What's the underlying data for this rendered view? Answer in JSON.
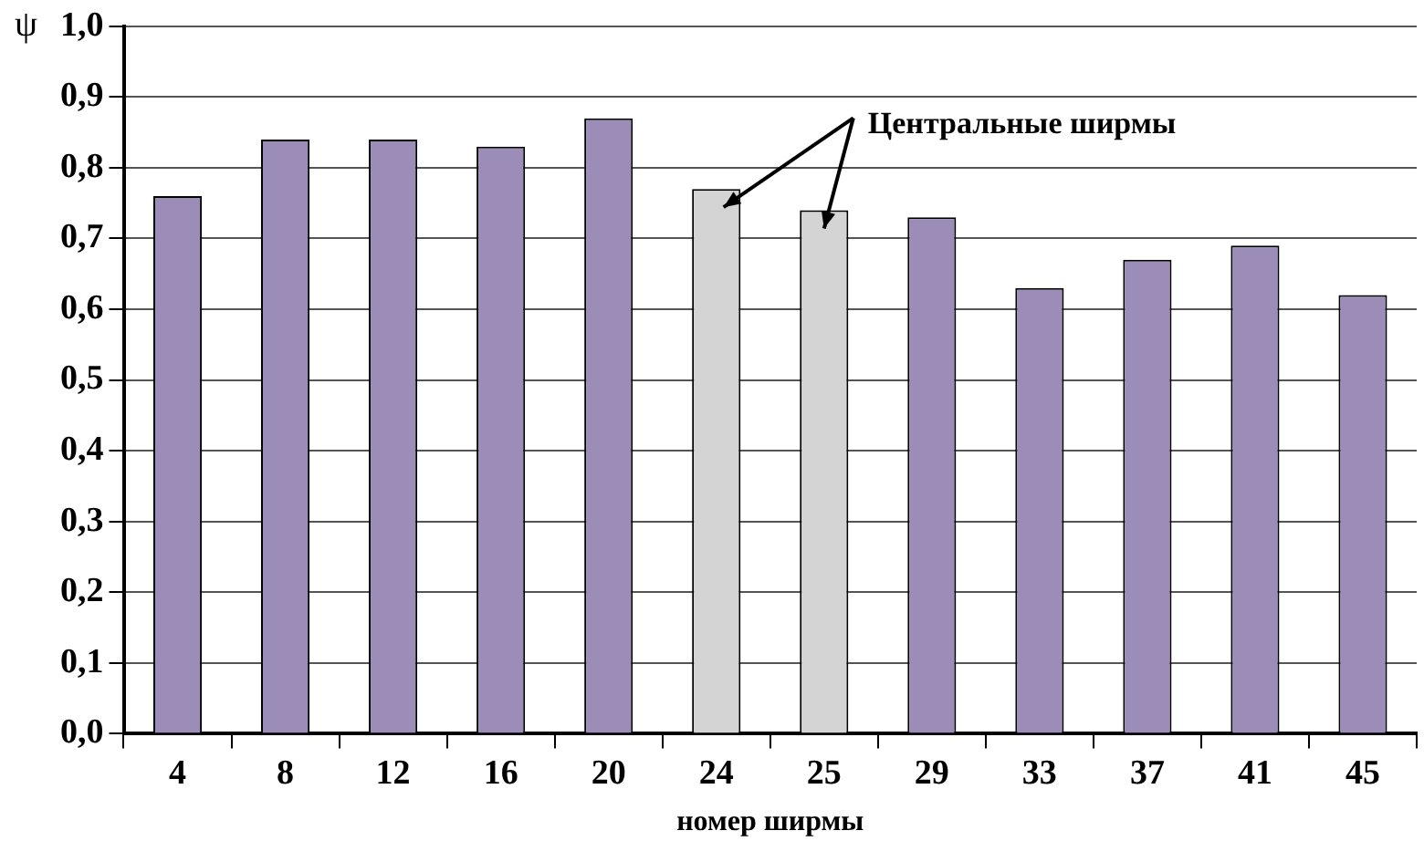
{
  "chart_data": {
    "type": "bar",
    "xlabel": "номер ширмы",
    "ylabel": "ψ",
    "categories": [
      "4",
      "8",
      "12",
      "16",
      "20",
      "24",
      "25",
      "29",
      "33",
      "37",
      "41",
      "45"
    ],
    "values": [
      0.76,
      0.84,
      0.84,
      0.83,
      0.87,
      0.77,
      0.74,
      0.73,
      0.63,
      0.67,
      0.69,
      0.62
    ],
    "colors": [
      "#9c8cb8",
      "#9c8cb8",
      "#9c8cb8",
      "#9c8cb8",
      "#9c8cb8",
      "#d4d4d4",
      "#d4d4d4",
      "#9c8cb8",
      "#9c8cb8",
      "#9c8cb8",
      "#9c8cb8",
      "#9c8cb8"
    ],
    "ylim": [
      0,
      1
    ],
    "yticks": [
      {
        "value": 0,
        "label": "0,0"
      },
      {
        "value": 0.1,
        "label": "0,1"
      },
      {
        "value": 0.2,
        "label": "0,2"
      },
      {
        "value": 0.3,
        "label": "0,3"
      },
      {
        "value": 0.4,
        "label": "0,4"
      },
      {
        "value": 0.5,
        "label": "0,5"
      },
      {
        "value": 0.6,
        "label": "0,6"
      },
      {
        "value": 0.7,
        "label": "0,7"
      },
      {
        "value": 0.8,
        "label": "0,8"
      },
      {
        "value": 0.9,
        "label": "0,9"
      },
      {
        "value": 1,
        "label": "1,0"
      }
    ],
    "grid": "y",
    "legend": false,
    "annotations": [
      "Центральные ширмы"
    ]
  }
}
